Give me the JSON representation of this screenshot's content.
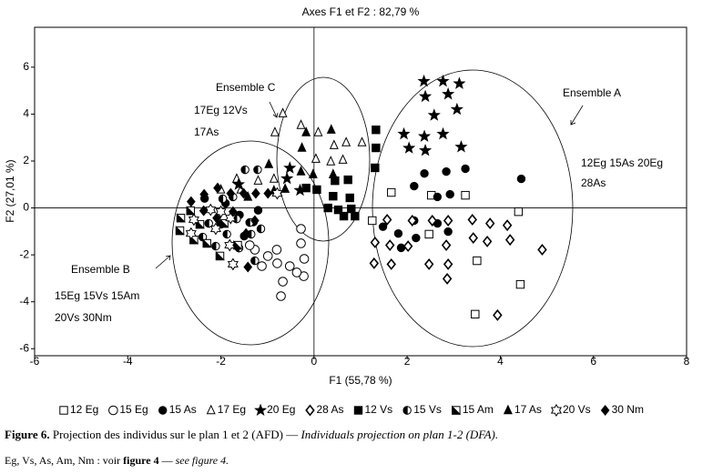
{
  "chart_data": {
    "type": "scatter",
    "title": "Axes F1 et F2 : 82,79 %",
    "x_label": "F1 (55,78 %)",
    "y_label": "F2 (27,01 %)",
    "xlim": [
      -6,
      8
    ],
    "ylim": [
      -6.3,
      7.7
    ],
    "xticks": [
      -6,
      -4,
      -2,
      0,
      2,
      4,
      6,
      8
    ],
    "yticks": [
      -6,
      -4,
      -2,
      0,
      2,
      4,
      6
    ],
    "grid": false,
    "legend": "bottom",
    "series": [
      {
        "name": "12 Eg",
        "color": "#000000",
        "marker": "square-open",
        "x": [
          1.66,
          2.52,
          3.25,
          1.25,
          2.47,
          3.5,
          4.43,
          3.46,
          4.39
        ],
        "y": [
          0.66,
          0.54,
          0.54,
          -0.54,
          -1.12,
          -2.25,
          -3.26,
          -4.53,
          -0.16
        ]
      },
      {
        "name": "15 Eg",
        "color": "#000000",
        "marker": "circle-open",
        "x": [
          -0.71,
          -0.28,
          -0.28,
          -0.21,
          -0.22,
          -0.37,
          -0.52,
          -0.79,
          -0.99,
          -0.8,
          -1.12,
          -1.27,
          -1.38,
          -0.67
        ],
        "y": [
          -3.76,
          -0.89,
          -1.51,
          -2.17,
          -2.91,
          -2.75,
          -2.48,
          -2.36,
          -2.05,
          -1.78,
          -2.48,
          -1.78,
          -1.59,
          -3.14
        ]
      },
      {
        "name": "15 As",
        "color": "#000000",
        "marker": "circle",
        "x": [
          2.37,
          2.84,
          3.25,
          4.45,
          2.65,
          2.92,
          2.15,
          1.48,
          1.87,
          2.19,
          2.88,
          2.15,
          2.65,
          1.81,
          -2.35,
          -1.9,
          -1.6,
          -1.3,
          -1.5,
          -1.2,
          -2.0
        ],
        "y": [
          1.47,
          1.55,
          1.67,
          1.24,
          0.47,
          0.58,
          0.93,
          -0.8,
          -1.7,
          -1.28,
          -1.01,
          -0.54,
          -0.66,
          -1.09,
          0.4,
          0.2,
          -0.3,
          -0.6,
          -1.2,
          -0.1,
          -0.7
        ]
      },
      {
        "name": "17 Eg",
        "color": "#000000",
        "marker": "triangle-open",
        "x": [
          -0.67,
          -0.84,
          -0.28,
          0.09,
          0.43,
          0.69,
          1.03,
          0.04,
          0.36,
          0.62,
          -1.66,
          -1.57,
          -1.2,
          -0.86,
          -2.0
        ],
        "y": [
          4.03,
          3.22,
          3.53,
          3.22,
          2.67,
          2.79,
          2.79,
          2.09,
          1.98,
          2.05,
          1.24,
          0.78,
          1.16,
          1.24,
          0.78
        ]
      },
      {
        "name": "20 Eg",
        "color": "#000000",
        "marker": "star",
        "x": [
          2.36,
          2.77,
          3.12,
          2.39,
          2.88,
          2.58,
          3.07,
          1.93,
          2.37,
          2.77,
          3.16,
          2.39,
          2.04,
          -0.52,
          -0.58,
          -0.3,
          -1.62
        ],
        "y": [
          5.4,
          5.4,
          5.3,
          4.75,
          4.85,
          3.95,
          4.2,
          3.15,
          3.05,
          3.15,
          2.6,
          2.45,
          2.55,
          1.7,
          1.25,
          0.75,
          1.0
        ]
      },
      {
        "name": "28 As",
        "color": "#000000",
        "marker": "diamond-open",
        "x": [
          1.29,
          1.66,
          1.31,
          1.63,
          2.02,
          2.47,
          2.88,
          2.86,
          2.11,
          2.54,
          2.88,
          3.4,
          3.78,
          4.15,
          3.42,
          3.72,
          4.21,
          4.9,
          3.94,
          1.57,
          2.84
        ],
        "y": [
          -2.36,
          -2.4,
          -1.47,
          -1.59,
          -1.63,
          -2.4,
          -2.4,
          -3.02,
          -0.54,
          -0.54,
          -0.54,
          -0.5,
          -0.66,
          -0.74,
          -1.28,
          -1.43,
          -1.36,
          -1.78,
          -4.57,
          -0.5,
          -1.59
        ]
      },
      {
        "name": "12 Vs",
        "color": "#000000",
        "marker": "square",
        "x": [
          1.33,
          1.33,
          1.31,
          0.45,
          0.73,
          0.41,
          0.77,
          0.8,
          0.06,
          -0.17,
          0.3,
          0.64,
          0.88,
          0.52
        ],
        "y": [
          3.33,
          2.56,
          1.71,
          1.16,
          1.2,
          0.5,
          0.43,
          -0.04,
          0.78,
          0.85,
          0.0,
          -0.35,
          -0.35,
          -0.08
        ]
      },
      {
        "name": "15 Vs",
        "color": "#000000",
        "marker": "circle-half",
        "x": [
          -1.96,
          -1.74,
          -1.48,
          -1.21,
          -1.66,
          -1.38,
          -1.35,
          -1.61,
          -1.27,
          -1.87,
          -2.11,
          -2.39,
          -2.26,
          -1.14
        ],
        "y": [
          0.39,
          0.47,
          1.63,
          1.63,
          -0.47,
          -0.62,
          -1.12,
          -1.71,
          -2.25,
          -1.12,
          -1.63,
          -1.24,
          -0.66,
          -0.89
        ]
      },
      {
        "name": "15 Am",
        "color": "#000000",
        "marker": "square-half",
        "x": [
          -2.65,
          -2.86,
          -2.88,
          -2.58,
          -2.3,
          -2.02,
          -2.45,
          -1.64,
          -1.93
        ],
        "y": [
          -0.12,
          -0.43,
          -0.97,
          -1.36,
          -1.51,
          -2.05,
          -0.7,
          -1.59,
          -0.66
        ]
      },
      {
        "name": "17 As",
        "color": "#000000",
        "marker": "triangle",
        "x": [
          -0.17,
          0.37,
          -0.26,
          -0.97,
          0.41,
          -0.28,
          -0.62,
          -0.86,
          -1.42,
          -0.02
        ],
        "y": [
          3.22,
          3.33,
          2.56,
          1.86,
          1.43,
          1.55,
          0.81,
          0.74,
          0.47,
          1.43
        ]
      },
      {
        "name": "20 Vs",
        "color": "#000000",
        "marker": "star-open",
        "x": [
          -2.64,
          -2.58,
          -2.22,
          -2.0,
          -1.79,
          -1.81,
          -1.74,
          -0.79,
          -2.11
        ],
        "y": [
          -1.09,
          -0.5,
          -0.08,
          -0.16,
          -0.43,
          -1.59,
          -2.4,
          0.62,
          -0.89
        ]
      },
      {
        "name": "30 Nm",
        "color": "#000000",
        "marker": "diamond",
        "x": [
          -2.36,
          -2.07,
          -1.79,
          -1.51,
          -1.25,
          -0.99,
          -2.37,
          -2.09,
          -1.74,
          -1.27,
          -1.42,
          -1.46,
          -2.64
        ],
        "y": [
          0.58,
          0.85,
          0.62,
          0.62,
          0.62,
          0.62,
          -0.12,
          -0.43,
          -0.16,
          -0.54,
          -2.52,
          -1.09,
          0.27
        ]
      }
    ],
    "annotations": [
      "Ensemble C",
      "17Eg 12Vs",
      "17As",
      "Ensemble A",
      "12Eg 15As 20Eg",
      "28As",
      "Ensemble B",
      "15Eg 15Vs 15Am",
      "20Vs 30Nm"
    ]
  },
  "caption": {
    "label": "Figure 6.",
    "text": "Projection des individus sur le plan 1 et 2 (AFD) —",
    "text_en": "Individuals projection on plan 1-2 (DFA).",
    "note": "Eg, Vs, As, Am, Nm : voir",
    "note_ref": "figure 4",
    "note_sep": "—",
    "note_en": "see figure 4."
  }
}
